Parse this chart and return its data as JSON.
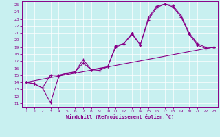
{
  "bg_color": "#c8f0f0",
  "line_color": "#880088",
  "xlim": [
    -0.5,
    23.5
  ],
  "ylim": [
    10.5,
    25.5
  ],
  "xticks": [
    0,
    1,
    2,
    3,
    4,
    5,
    6,
    7,
    8,
    9,
    10,
    11,
    12,
    13,
    14,
    15,
    16,
    17,
    18,
    19,
    20,
    21,
    22,
    23
  ],
  "yticks": [
    11,
    12,
    13,
    14,
    15,
    16,
    17,
    18,
    19,
    20,
    21,
    22,
    23,
    24,
    25
  ],
  "xlabel": "Windchill (Refroidissement éolien,°C)",
  "line1_x": [
    0,
    1,
    2,
    3,
    4,
    5,
    6,
    7,
    8,
    9,
    10,
    11,
    12,
    13,
    14,
    15,
    16,
    17,
    18,
    19,
    20,
    21,
    22,
    23
  ],
  "line1_y": [
    14,
    13.8,
    13.2,
    15.0,
    15.0,
    15.3,
    15.5,
    17.2,
    15.8,
    16.0,
    16.2,
    19.2,
    19.5,
    21.0,
    19.3,
    23.2,
    24.8,
    25.1,
    24.9,
    23.5,
    21.0,
    19.5,
    19.0,
    19.0
  ],
  "line2_x": [
    0,
    1,
    2,
    3,
    4,
    5,
    6,
    7,
    8,
    9,
    10,
    11,
    12,
    13,
    14,
    15,
    16,
    17,
    18,
    19,
    20,
    21,
    22,
    23
  ],
  "line2_y": [
    14,
    13.8,
    13.2,
    11.1,
    14.8,
    15.3,
    15.5,
    16.7,
    15.8,
    15.7,
    16.2,
    19.0,
    19.5,
    20.8,
    19.3,
    22.9,
    24.6,
    25.1,
    24.7,
    23.3,
    20.8,
    19.3,
    18.8,
    19.0
  ],
  "line3_x": [
    0,
    23
  ],
  "line3_y": [
    14,
    19
  ]
}
